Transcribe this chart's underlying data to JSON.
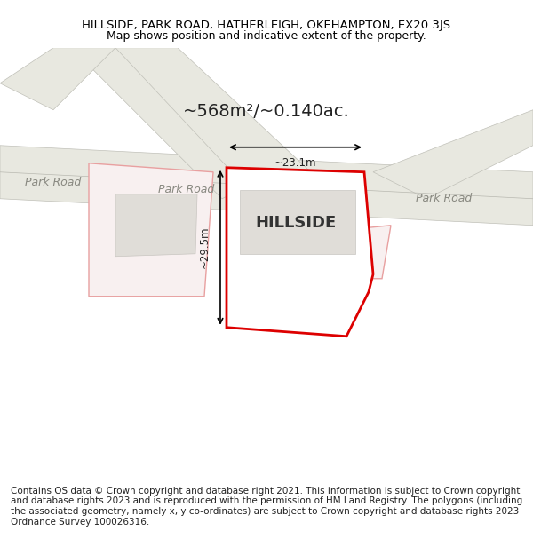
{
  "title_line1": "HILLSIDE, PARK ROAD, HATHERLEIGH, OKEHAMPTON, EX20 3JS",
  "title_line2": "Map shows position and indicative extent of the property.",
  "area_text": "~568m²/~0.140ac.",
  "property_label": "HILLSIDE",
  "dim_vertical": "~29.5m",
  "dim_horizontal": "~23.1m",
  "road_labels": [
    "Park Road",
    "Park Road",
    "Park Road"
  ],
  "footer_text": "Contains OS data © Crown copyright and database right 2021. This information is subject to Crown copyright and database rights 2023 and is reproduced with the permission of HM Land Registry. The polygons (including the associated geometry, namely x, y co-ordinates) are subject to Crown copyright and database rights 2023 Ordnance Survey 100026316.",
  "bg_color": "#ffffff",
  "map_bg": "#f5f5f0",
  "road_color": "#d0d0c8",
  "road_line_color": "#c0c0b8",
  "road_fill": "#e8e8e0",
  "property_outline_color": "#dd0000",
  "property_fill": "#ffffff",
  "nearby_outline_color": "#e8a0a0",
  "nearby_fill": "#f8f0f0",
  "building_fill": "#e0ddd8",
  "building_outline": "#c8c5c0",
  "dimension_color": "#000000",
  "title_fontsize": 9.5,
  "label_fontsize": 8.5,
  "footer_fontsize": 7.5
}
